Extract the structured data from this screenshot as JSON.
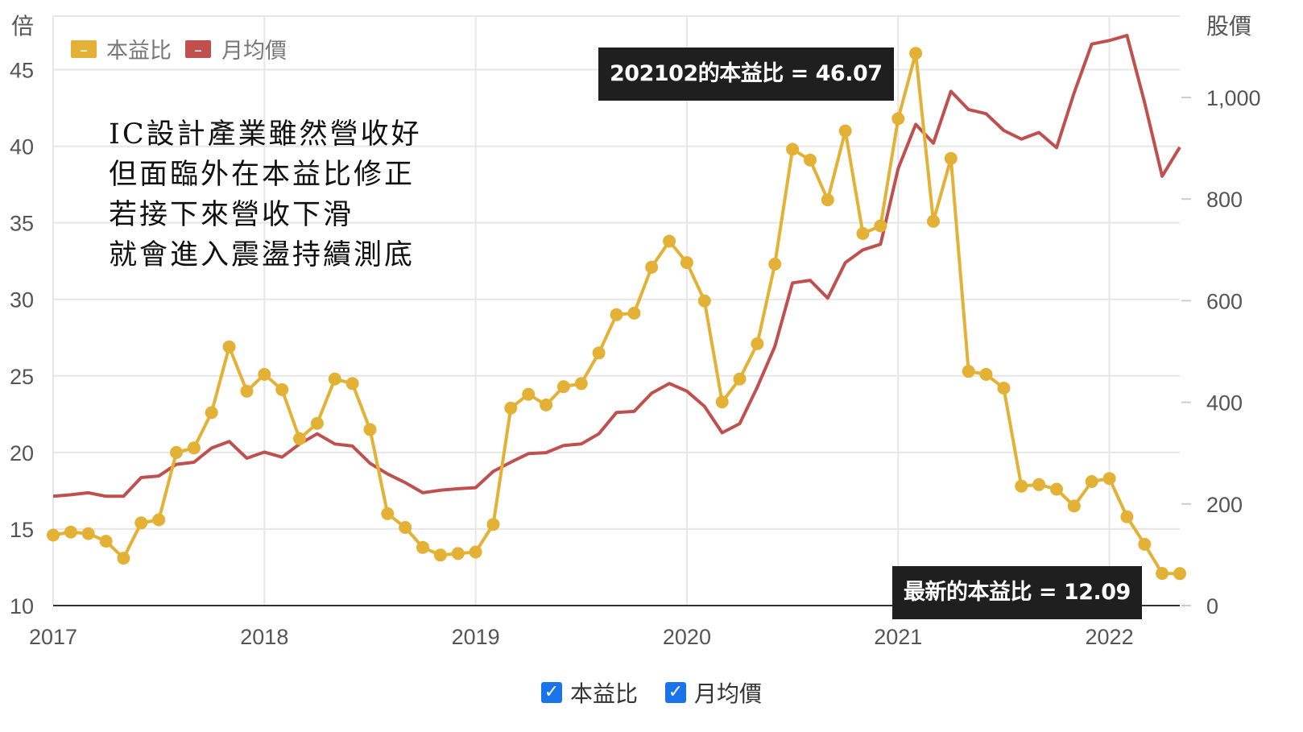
{
  "chart_data": {
    "type": "line",
    "y_left_unit": "倍",
    "y_right_unit": "股價",
    "y_left_ticks": [
      "10",
      "15",
      "20",
      "25",
      "30",
      "35",
      "40",
      "45"
    ],
    "y_right_ticks": [
      "0",
      "200",
      "400",
      "600",
      "800",
      "1,000"
    ],
    "ylim_left": [
      10,
      48.5
    ],
    "ylim_right": [
      0,
      1160
    ],
    "x_ticks": [
      "2017",
      "2018",
      "2019",
      "2020",
      "2021",
      "2022"
    ],
    "x_range": [
      "2017-01",
      "2022-05"
    ],
    "grid": true,
    "legend": {
      "placement": "top-left",
      "items": [
        "本益比",
        "月均價"
      ]
    },
    "series": [
      {
        "name": "本益比",
        "axis": "left",
        "color": "#e3b135",
        "markers": true,
        "values": [
          14.6,
          14.8,
          14.7,
          14.2,
          13.1,
          15.4,
          15.6,
          20.0,
          20.3,
          22.6,
          26.9,
          24.0,
          25.1,
          24.1,
          20.9,
          21.9,
          24.8,
          24.5,
          21.5,
          16.0,
          15.1,
          13.8,
          13.3,
          13.4,
          13.5,
          15.3,
          22.9,
          23.8,
          23.1,
          24.3,
          24.5,
          26.5,
          29.0,
          29.1,
          32.1,
          33.8,
          32.4,
          29.9,
          23.3,
          24.8,
          27.1,
          32.3,
          39.8,
          39.1,
          36.5,
          41.0,
          34.3,
          34.8,
          41.8,
          46.07,
          35.1,
          39.2,
          25.3,
          25.1,
          24.2,
          17.8,
          17.9,
          17.6,
          16.5,
          18.1,
          18.3,
          15.8,
          14.0,
          12.1,
          12.09
        ]
      },
      {
        "name": "月均價",
        "axis": "right",
        "color": "#c0504d",
        "markers": false,
        "values": [
          215,
          218,
          222,
          215,
          215,
          252,
          255,
          278,
          282,
          310,
          323,
          290,
          302,
          292,
          318,
          338,
          318,
          314,
          280,
          259,
          242,
          222,
          227,
          230,
          232,
          264,
          282,
          299,
          301,
          315,
          318,
          338,
          380,
          382,
          418,
          437,
          422,
          392,
          340,
          358,
          430,
          510,
          635,
          640,
          605,
          675,
          700,
          711,
          860,
          947,
          910,
          1012,
          976,
          968,
          935,
          918,
          931,
          901,
          1009,
          1105,
          1112,
          1122,
          990,
          845,
          902
        ]
      }
    ],
    "annotations": [
      {
        "label": "202102的本益比 = 46.07",
        "x": "2021-02",
        "y": 46.07
      },
      {
        "label": "最新的本益比 = 12.09",
        "x": "2022-05",
        "y": 12.09
      }
    ]
  },
  "annotation_text": {
    "lines": [
      "IC設計產業雖然營收好",
      "但面臨外在本益比修正",
      "若接下來營收下滑",
      "就會進入震盪持續測底"
    ]
  },
  "bottom_legend": {
    "items": [
      {
        "label": "本益比",
        "checked": true
      },
      {
        "label": "月均價",
        "checked": true
      }
    ]
  },
  "colors": {
    "pe": "#e3b135",
    "price": "#c0504d",
    "grid": "#e6e6e6",
    "tooltip_bg": "#1f1f1f",
    "checkbox": "#1a73e8"
  }
}
